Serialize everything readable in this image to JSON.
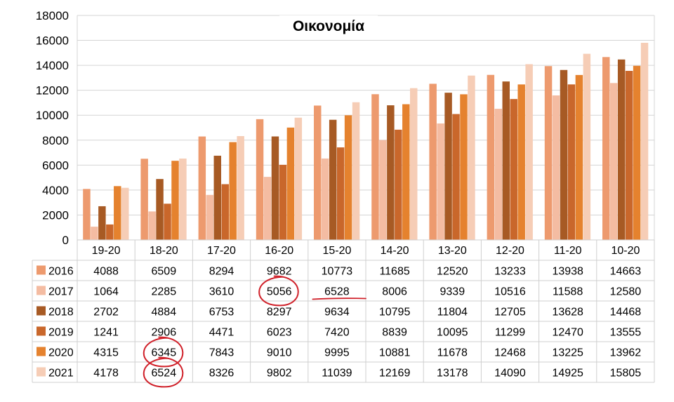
{
  "chart_data": {
    "type": "bar",
    "title": "Οικονομία",
    "xlabel": "",
    "ylabel": "",
    "ylim": [
      0,
      18000
    ],
    "yticks": [
      0,
      2000,
      4000,
      6000,
      8000,
      10000,
      12000,
      14000,
      16000,
      18000
    ],
    "grid": true,
    "legend": "data-table",
    "categories": [
      "19-20",
      "18-20",
      "17-20",
      "16-20",
      "15-20",
      "14-20",
      "13-20",
      "12-20",
      "11-20",
      "10-20"
    ],
    "series": [
      {
        "name": "2016",
        "color": "#ED9A6E",
        "values": [
          4088,
          6509,
          8294,
          9682,
          10773,
          11685,
          12520,
          13233,
          13938,
          14663
        ]
      },
      {
        "name": "2017",
        "color": "#F4BCA2",
        "values": [
          1064,
          2285,
          3610,
          5056,
          6528,
          8006,
          9339,
          10516,
          11588,
          12580
        ]
      },
      {
        "name": "2018",
        "color": "#A75A24",
        "values": [
          2702,
          4884,
          6753,
          8297,
          9634,
          10795,
          11804,
          12705,
          13628,
          14468
        ]
      },
      {
        "name": "2019",
        "color": "#C9672B",
        "values": [
          1241,
          2906,
          4471,
          6023,
          7420,
          8839,
          10095,
          11299,
          12470,
          13555
        ]
      },
      {
        "name": "2020",
        "color": "#E5822E",
        "values": [
          4315,
          6345,
          7843,
          9010,
          9995,
          10881,
          11678,
          12468,
          13225,
          13962
        ]
      },
      {
        "name": "2021",
        "color": "#F6CDB6",
        "values": [
          4178,
          6524,
          8326,
          9802,
          11039,
          12169,
          13178,
          14090,
          14925,
          15805
        ]
      }
    ],
    "annotations": [
      {
        "type": "circle",
        "series": "2017",
        "category": "16-20",
        "color": "#D0212A"
      },
      {
        "type": "underline",
        "series": "2017",
        "category": "15-20",
        "color": "#D0212A"
      },
      {
        "type": "circle",
        "series": "2020",
        "category": "18-20",
        "color": "#D0212A"
      },
      {
        "type": "circle",
        "series": "2021",
        "category": "18-20",
        "color": "#D0212A"
      }
    ]
  }
}
